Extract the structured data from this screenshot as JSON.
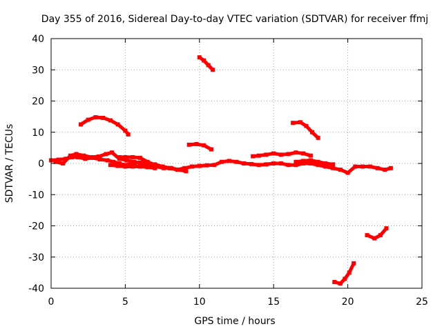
{
  "chart_data": {
    "type": "scatter",
    "title": "Day 355 of 2016, Sidereal Day-to-day VTEC variation (SDTVAR) for receiver ffmj",
    "xlabel": "GPS time / hours",
    "ylabel": "SDTVAR / TECUs",
    "xlim": [
      0,
      25
    ],
    "ylim": [
      -40,
      40
    ],
    "xticks": [
      0,
      5,
      10,
      15,
      20,
      25
    ],
    "yticks": [
      -40,
      -30,
      -20,
      -10,
      0,
      10,
      20,
      30,
      40
    ],
    "grid": true,
    "series_color": "#ff0000",
    "series": [
      {
        "name": "arc-1",
        "x": [
          2.0,
          2.5,
          3.0,
          3.5,
          4.0,
          4.5,
          5.0,
          5.2
        ],
        "y": [
          12.5,
          14.0,
          14.8,
          14.6,
          13.8,
          12.5,
          10.5,
          9.3
        ]
      },
      {
        "name": "arc-2",
        "x": [
          10.0,
          10.3,
          10.6,
          10.9
        ],
        "y": [
          34.0,
          33.0,
          31.5,
          30.0
        ]
      },
      {
        "name": "arc-3",
        "x": [
          9.3,
          9.8,
          10.3,
          10.8
        ],
        "y": [
          6.0,
          6.2,
          5.8,
          4.5
        ]
      },
      {
        "name": "arc-4",
        "x": [
          16.3,
          16.8,
          17.2,
          17.6,
          18.0
        ],
        "y": [
          13.0,
          13.2,
          12.0,
          10.0,
          8.2
        ]
      },
      {
        "name": "arc-5",
        "x": [
          19.1,
          19.5,
          19.8,
          20.1,
          20.4
        ],
        "y": [
          -38.0,
          -38.5,
          -37.0,
          -35.0,
          -32.0
        ]
      },
      {
        "name": "arc-6",
        "x": [
          21.3,
          21.8,
          22.2,
          22.6
        ],
        "y": [
          -23.0,
          -24.0,
          -23.0,
          -20.8
        ]
      },
      {
        "name": "band-1",
        "x": [
          0.0,
          0.5,
          1.0,
          1.4,
          1.8,
          2.3,
          2.8,
          3.3,
          3.8,
          4.2,
          4.6,
          5.0,
          5.5,
          6.0,
          6.5,
          7.0,
          7.5,
          8.0,
          8.5,
          9.0,
          9.5,
          10.0,
          10.5,
          11.0,
          11.5,
          12.0,
          12.5,
          13.0,
          13.5,
          14.0,
          14.5,
          15.0,
          15.5,
          16.0,
          16.5,
          17.0,
          17.5,
          18.0,
          18.5,
          19.0,
          19.5,
          20.0,
          20.5,
          21.0,
          21.5,
          22.0,
          22.5,
          22.9
        ],
        "y": [
          1.0,
          1.2,
          1.5,
          2.0,
          2.0,
          1.5,
          1.8,
          1.3,
          1.0,
          0.5,
          0.0,
          -0.5,
          0.0,
          0.3,
          0.0,
          -0.3,
          -1.0,
          -1.5,
          -2.0,
          -1.5,
          -1.0,
          -0.8,
          -0.6,
          -0.5,
          0.5,
          0.8,
          0.5,
          0.0,
          -0.2,
          -0.5,
          -0.3,
          0.0,
          0.0,
          -0.5,
          -0.5,
          0.0,
          0.0,
          -0.5,
          -1.0,
          -1.5,
          -2.0,
          -3.0,
          -1.0,
          -1.0,
          -1.0,
          -1.5,
          -2.0,
          -1.5
        ]
      },
      {
        "name": "band-2",
        "x": [
          0.3,
          0.8,
          1.3,
          1.7,
          2.2,
          2.7,
          3.2,
          3.7,
          4.1,
          4.6,
          5.1,
          5.6,
          6.1,
          6.6,
          7.1,
          7.6,
          8.1,
          8.6,
          9.1
        ],
        "y": [
          0.5,
          0.0,
          2.5,
          3.0,
          2.5,
          2.0,
          2.2,
          3.0,
          3.5,
          1.5,
          1.0,
          0.5,
          0.0,
          -0.5,
          -1.0,
          -1.5,
          -1.5,
          -2.0,
          -2.5
        ]
      },
      {
        "name": "band-3",
        "x": [
          4.6,
          5.0,
          5.5,
          6.0,
          6.5,
          7.0,
          7.5,
          8.0
        ],
        "y": [
          2.0,
          2.0,
          2.0,
          1.8,
          0.5,
          -0.5,
          -1.0,
          -1.5
        ]
      },
      {
        "name": "band-4",
        "x": [
          4.0,
          4.5,
          5.0,
          5.5,
          6.0,
          6.5,
          7.0
        ],
        "y": [
          -0.5,
          -0.8,
          -1.0,
          -1.0,
          -1.0,
          -1.2,
          -1.5
        ]
      },
      {
        "name": "band-5",
        "x": [
          13.6,
          14.0,
          14.5,
          15.0,
          15.5,
          16.0,
          16.5,
          17.0,
          17.5
        ],
        "y": [
          2.3,
          2.5,
          2.8,
          3.2,
          2.8,
          3.0,
          3.5,
          3.2,
          2.5
        ]
      },
      {
        "name": "band-6",
        "x": [
          16.5,
          17.0,
          17.5,
          18.0,
          18.5,
          19.0
        ],
        "y": [
          0.5,
          0.8,
          1.0,
          0.5,
          0.0,
          -0.3
        ]
      }
    ]
  }
}
